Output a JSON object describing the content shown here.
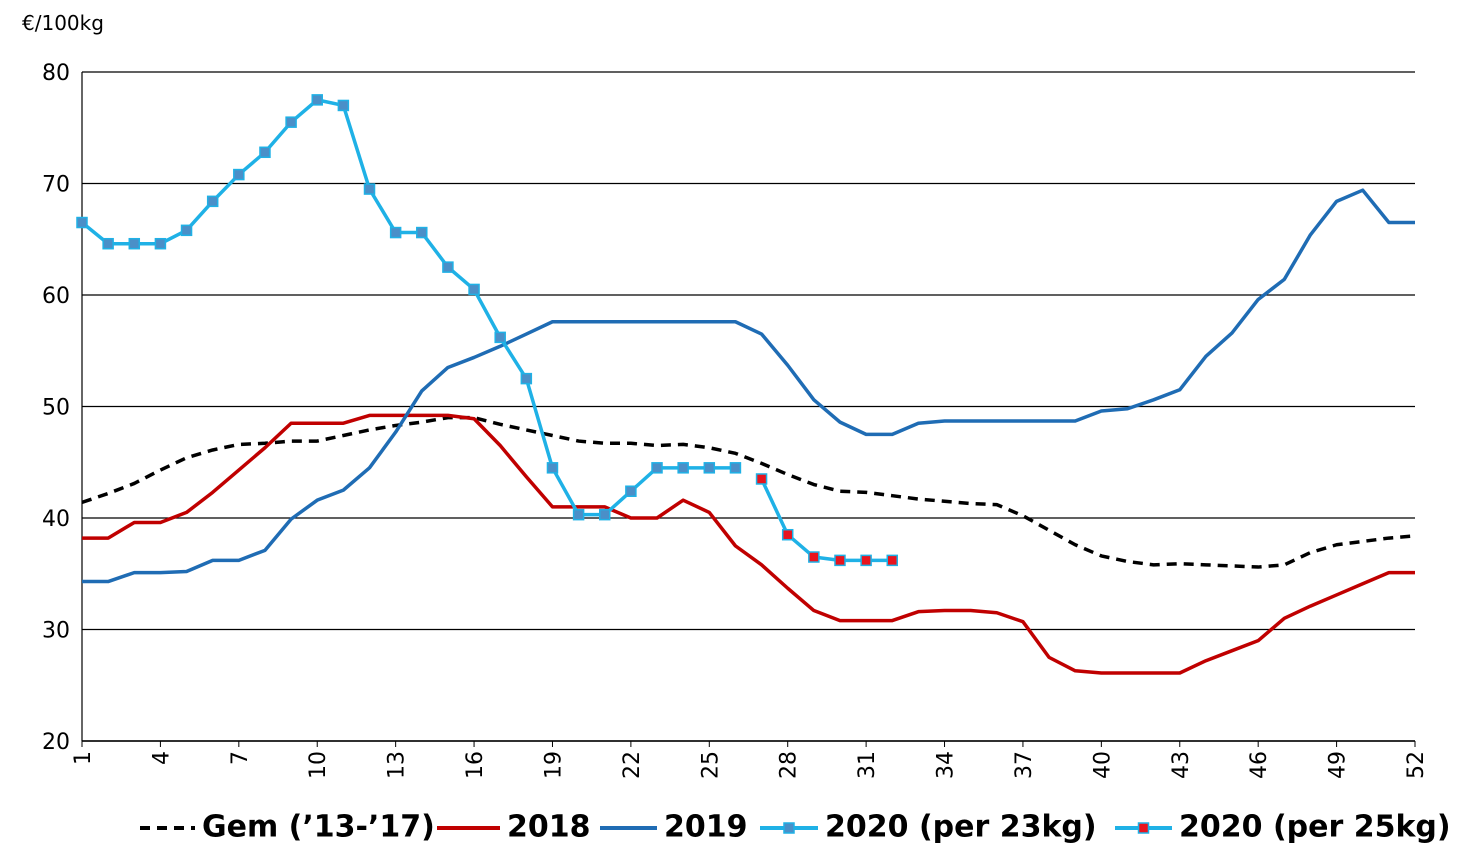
{
  "chart_data": {
    "type": "line",
    "y_label": "€/100kg",
    "x": [
      1,
      2,
      3,
      4,
      5,
      6,
      7,
      8,
      9,
      10,
      11,
      12,
      13,
      14,
      15,
      16,
      17,
      18,
      19,
      20,
      21,
      22,
      23,
      24,
      25,
      26,
      27,
      28,
      29,
      30,
      31,
      32,
      33,
      34,
      35,
      36,
      37,
      38,
      39,
      40,
      41,
      42,
      43,
      44,
      45,
      46,
      47,
      48,
      49,
      50,
      51,
      52
    ],
    "xlim": [
      1,
      52
    ],
    "xticks": [
      1,
      4,
      7,
      10,
      13,
      16,
      19,
      22,
      25,
      28,
      31,
      34,
      37,
      40,
      43,
      46,
      49,
      52
    ],
    "ylim": [
      20,
      80
    ],
    "yticks": [
      20,
      30,
      40,
      50,
      60,
      70,
      80
    ],
    "grid": true,
    "legend": "bottom",
    "series": [
      {
        "name": "Gem (’13-’17)",
        "color": "#000000",
        "dashed": true,
        "values": [
          41.4,
          42.2,
          43.1,
          44.3,
          45.4,
          46.1,
          46.6,
          46.7,
          46.9,
          46.9,
          47.4,
          47.9,
          48.3,
          48.6,
          49.0,
          49.0,
          48.4,
          47.9,
          47.4,
          46.9,
          46.7,
          46.7,
          46.5,
          46.6,
          46.3,
          45.8,
          44.9,
          43.9,
          43.0,
          42.4,
          42.3,
          42.0,
          41.7,
          41.5,
          41.3,
          41.2,
          40.2,
          38.9,
          37.6,
          36.6,
          36.1,
          35.8,
          35.9,
          35.8,
          35.7,
          35.6,
          35.8,
          36.9,
          37.6,
          37.9,
          38.2,
          38.4
        ]
      },
      {
        "name": "2018",
        "color": "#c00000",
        "values": [
          38.2,
          38.2,
          39.6,
          39.6,
          40.5,
          42.3,
          44.3,
          46.3,
          48.5,
          48.5,
          48.5,
          49.2,
          49.2,
          49.2,
          49.2,
          48.9,
          46.5,
          43.7,
          41.0,
          41.0,
          41.0,
          40.0,
          40.0,
          41.6,
          40.5,
          37.5,
          35.8,
          33.7,
          31.7,
          30.8,
          30.8,
          30.8,
          31.6,
          31.7,
          31.7,
          31.5,
          30.7,
          27.5,
          26.3,
          26.1,
          26.1,
          26.1,
          26.1,
          27.2,
          28.1,
          29.0,
          31.0,
          32.1,
          33.1,
          34.1,
          35.1,
          35.1
        ]
      },
      {
        "name": "2019",
        "color": "#1f6cb4",
        "values": [
          34.3,
          34.3,
          35.1,
          35.1,
          35.2,
          36.2,
          36.2,
          37.1,
          39.9,
          41.6,
          42.5,
          44.5,
          47.7,
          51.4,
          53.5,
          54.4,
          55.4,
          56.5,
          57.6,
          57.6,
          57.6,
          57.6,
          57.6,
          57.6,
          57.6,
          57.6,
          56.5,
          53.7,
          50.6,
          48.6,
          47.5,
          47.5,
          48.5,
          48.7,
          48.7,
          48.7,
          48.7,
          48.7,
          48.7,
          49.6,
          49.8,
          50.6,
          51.5,
          54.5,
          56.6,
          59.6,
          61.4,
          65.4,
          68.4,
          69.4,
          66.5,
          66.5
        ]
      },
      {
        "name": "2020 (per 23kg)",
        "color": "#1fb1e6",
        "marker_color": "#4a8fc8",
        "values": [
          66.5,
          64.6,
          64.6,
          64.6,
          65.8,
          68.4,
          70.8,
          72.8,
          75.5,
          77.5,
          77.0,
          69.5,
          65.6,
          65.6,
          62.5,
          60.5,
          56.2,
          52.5,
          44.5,
          40.3,
          40.3,
          42.4,
          44.5,
          44.5,
          44.5,
          44.5,
          null,
          null,
          null,
          null,
          null,
          null,
          null,
          null,
          null,
          null,
          null,
          null,
          null,
          null,
          null,
          null,
          null,
          null,
          null,
          null,
          null,
          null,
          null,
          null,
          null,
          null
        ]
      },
      {
        "name": "2020 (per 25kg)",
        "color": "#1fb1e6",
        "marker_color": "#e8141e",
        "values": [
          null,
          null,
          null,
          null,
          null,
          null,
          null,
          null,
          null,
          null,
          null,
          null,
          null,
          null,
          null,
          null,
          null,
          null,
          null,
          null,
          null,
          null,
          null,
          null,
          null,
          null,
          43.5,
          38.5,
          36.5,
          36.2,
          36.2,
          36.2,
          null,
          null,
          null,
          null,
          null,
          null,
          null,
          null,
          null,
          null,
          null,
          null,
          null,
          null,
          null,
          null,
          null,
          null,
          null,
          null
        ]
      }
    ]
  }
}
